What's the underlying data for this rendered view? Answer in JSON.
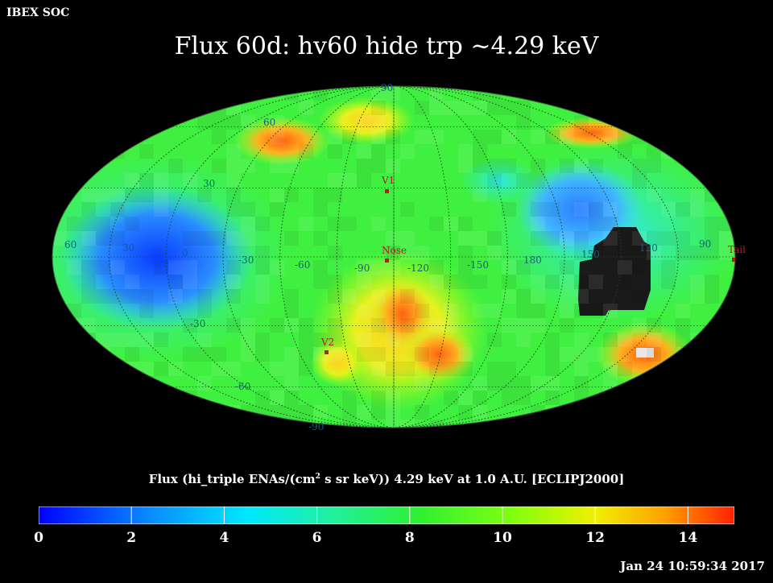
{
  "header": {
    "corner_label": "IBEX SOC",
    "title": "Flux   60d: hv60 hide trp ~4.29 keV"
  },
  "map": {
    "projection": "Mollweide (ecliptic J2000)",
    "lat_labels": [
      "90",
      "60",
      "30",
      "-30",
      "-60",
      "-90"
    ],
    "lon_labels": [
      "60",
      "30",
      "0",
      "-30",
      "-60",
      "-90",
      "-120",
      "-150",
      "180",
      "150",
      "120",
      "90"
    ],
    "markers": [
      {
        "label": "V1",
        "color": "#c83232"
      },
      {
        "label": "Nose",
        "color": "#c83232"
      },
      {
        "label": "V2",
        "color": "#c83232"
      },
      {
        "label": "Tail",
        "color": "#c83232"
      }
    ],
    "colors": {
      "grid": "#1a4a1a",
      "label": "#1a5a7a",
      "marker": "#b02020",
      "no_data": "#1a1a1a"
    }
  },
  "caption": {
    "text_before": "Flux (hi_triple ENAs/(cm",
    "superscript": "2",
    "text_after": " s sr keV))  4.29 keV at 1.0 A.U. [ECLIPJ2000]"
  },
  "colorbar": {
    "min": 0,
    "max": 15,
    "ticks": [
      "0",
      "2",
      "4",
      "6",
      "8",
      "10",
      "12",
      "14"
    ],
    "tick_values": [
      0,
      2,
      4,
      6,
      8,
      10,
      12,
      14
    ]
  },
  "footer": {
    "timestamp": "Jan 24 10:59:34 2017"
  }
}
